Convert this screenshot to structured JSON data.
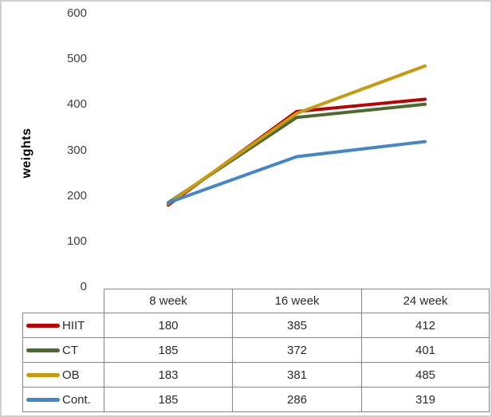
{
  "chart_data": {
    "type": "line",
    "categories": [
      "8 week",
      "16 week",
      "24 week"
    ],
    "series": [
      {
        "name": "HIIT",
        "color": "#c00000",
        "values": [
          180,
          385,
          412
        ]
      },
      {
        "name": "CT",
        "color": "#4e6b2e",
        "values": [
          185,
          372,
          401
        ]
      },
      {
        "name": "OB",
        "color": "#c79b0f",
        "values": [
          183,
          381,
          485
        ]
      },
      {
        "name": "Cont.",
        "color": "#4486c6",
        "values": [
          185,
          286,
          319
        ]
      }
    ],
    "title": "",
    "xlabel": "",
    "ylabel": "weights",
    "ylim": [
      0,
      600
    ],
    "yticks": [
      0,
      100,
      200,
      300,
      400,
      500,
      600
    ],
    "grid": false,
    "legend_position": "data-table-left",
    "data_table_shown": true
  },
  "styles": {
    "frame_border_color": "#cfcfcf",
    "table_border_color": "#878787",
    "tick_label_color": "#3f3f3f",
    "table_text_color": "#2b2b2b",
    "axis_title_color": "#000000",
    "background": "#ffffff"
  }
}
